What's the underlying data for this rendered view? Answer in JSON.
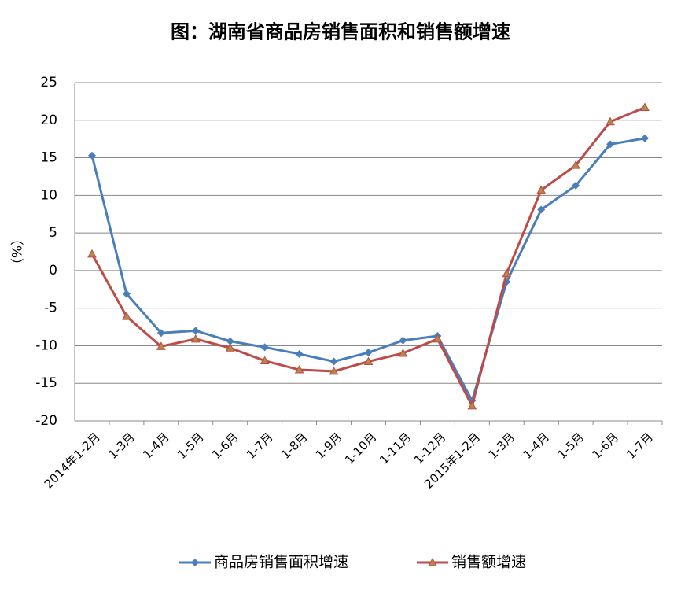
{
  "chart_data": {
    "type": "line",
    "title": "图：湖南省商品房销售面积和销售额增速",
    "y_label": "（%）",
    "categories": [
      "2014年1-2月",
      "1-3月",
      "1-4月",
      "1-5月",
      "1-6月",
      "1-7月",
      "1-8月",
      "1-9月",
      "1-10月",
      "1-11月",
      "1-12月",
      "2015年1-2月",
      "1-3月",
      "1-4月",
      "1-5月",
      "1-6月",
      "1-7月"
    ],
    "series": [
      {
        "name": "商品房销售面积增速",
        "color": "#4a7ebb",
        "marker": "diamond",
        "values": [
          15.3,
          -3.1,
          -8.3,
          -8.0,
          -9.4,
          -10.2,
          -11.1,
          -12.1,
          -10.9,
          -9.3,
          -8.7,
          -17.3,
          -1.5,
          8.1,
          11.3,
          16.8,
          17.6
        ]
      },
      {
        "name": "销售额增速",
        "color": "#be4b48",
        "marker": "triangle",
        "values": [
          2.2,
          -6.1,
          -10.1,
          -9.1,
          -10.3,
          -12.0,
          -13.2,
          -13.4,
          -12.1,
          -11.0,
          -9.1,
          -18.0,
          -0.4,
          10.7,
          14.0,
          19.8,
          21.7
        ]
      }
    ],
    "ylim": [
      -20,
      25
    ],
    "yticks": [
      -20,
      -15,
      -10,
      -5,
      0,
      5,
      10,
      15,
      20,
      25
    ],
    "grid": true,
    "legend": "bottom"
  }
}
